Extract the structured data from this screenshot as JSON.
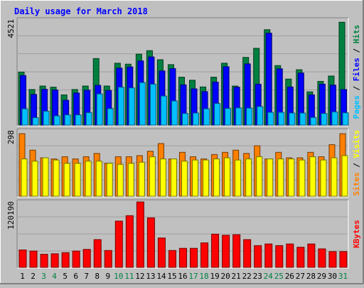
{
  "chart_data": [
    {
      "type": "bar",
      "title": "Daily usage for March 2018",
      "categories": [
        "1",
        "2",
        "3",
        "4",
        "5",
        "6",
        "7",
        "8",
        "9",
        "10",
        "11",
        "12",
        "13",
        "14",
        "15",
        "16",
        "17",
        "18",
        "19",
        "20",
        "21",
        "22",
        "23",
        "24",
        "25",
        "26",
        "27",
        "28",
        "29",
        "30",
        "31"
      ],
      "weekend_days": [
        "3",
        "4",
        "10",
        "11",
        "17",
        "18",
        "24",
        "25",
        "31"
      ],
      "ylim": [
        0,
        4521
      ],
      "y_tick_label": "4521",
      "legend": [
        "Pages",
        "Files",
        "Hits"
      ],
      "series": [
        {
          "name": "Hits",
          "values": [
            2280,
            1530,
            1680,
            1630,
            1300,
            1530,
            1680,
            2860,
            1680,
            2660,
            2620,
            3050,
            3200,
            2810,
            2600,
            2060,
            1930,
            1640,
            2060,
            2660,
            1680,
            2910,
            3300,
            4100,
            2560,
            1980,
            2380,
            1430,
            1880,
            2110,
            4420
          ]
        },
        {
          "name": "Files",
          "values": [
            2130,
            1320,
            1540,
            1510,
            1070,
            1380,
            1500,
            1710,
            1490,
            2450,
            2500,
            2760,
            2930,
            2330,
            2430,
            1730,
            1560,
            1440,
            1850,
            2510,
            1630,
            2630,
            1760,
            3950,
            2420,
            1640,
            2240,
            1300,
            1760,
            1720,
            1530
          ]
        },
        {
          "name": "Pages",
          "values": [
            700,
            320,
            600,
            400,
            440,
            440,
            540,
            1340,
            710,
            1630,
            1600,
            1830,
            1760,
            1250,
            1040,
            500,
            520,
            700,
            930,
            720,
            740,
            730,
            800,
            550,
            550,
            520,
            520,
            330,
            500,
            570,
            530
          ]
        }
      ],
      "colors": {
        "Hits": "#008040",
        "Files": "#0000ff",
        "Pages": "#00c0ff"
      }
    },
    {
      "type": "bar",
      "categories": [
        "1",
        "2",
        "3",
        "4",
        "5",
        "6",
        "7",
        "8",
        "9",
        "10",
        "11",
        "12",
        "13",
        "14",
        "15",
        "16",
        "17",
        "18",
        "19",
        "20",
        "21",
        "22",
        "23",
        "24",
        "25",
        "26",
        "27",
        "28",
        "29",
        "30",
        "31"
      ],
      "ylim": [
        0,
        298
      ],
      "y_tick_label": "298",
      "legend": [
        "Sites",
        "Visits"
      ],
      "series": [
        {
          "name": "Sites",
          "values": [
            285,
            210,
            175,
            170,
            180,
            170,
            180,
            195,
            150,
            180,
            180,
            185,
            205,
            240,
            170,
            200,
            180,
            170,
            190,
            200,
            210,
            195,
            230,
            170,
            200,
            175,
            175,
            200,
            180,
            235,
            285
          ]
        },
        {
          "name": "Visits",
          "values": [
            170,
            160,
            175,
            165,
            150,
            150,
            160,
            160,
            150,
            145,
            150,
            155,
            180,
            170,
            170,
            160,
            165,
            165,
            170,
            175,
            165,
            170,
            180,
            170,
            170,
            170,
            165,
            180,
            165,
            175,
            185
          ]
        }
      ],
      "colors": {
        "Sites": "#ff8000",
        "Visits": "#ffff00"
      }
    },
    {
      "type": "bar",
      "categories": [
        "1",
        "2",
        "3",
        "4",
        "5",
        "6",
        "7",
        "8",
        "9",
        "10",
        "11",
        "12",
        "13",
        "14",
        "15",
        "16",
        "17",
        "18",
        "19",
        "20",
        "21",
        "22",
        "23",
        "24",
        "25",
        "26",
        "27",
        "28",
        "29",
        "30",
        "31"
      ],
      "ylim": [
        0,
        120190
      ],
      "y_tick_label": "120190",
      "legend": [
        "KBytes"
      ],
      "series": [
        {
          "name": "KBytes",
          "values": [
            32000,
            30000,
            24000,
            25000,
            27000,
            30000,
            33000,
            51000,
            31000,
            85000,
            95000,
            120190,
            91000,
            54000,
            31000,
            35000,
            35000,
            45000,
            61000,
            59000,
            60000,
            51000,
            40000,
            43000,
            40000,
            43000,
            37000,
            43000,
            34000,
            29000,
            29000
          ]
        }
      ],
      "colors": {
        "KBytes": "#ff0000"
      }
    }
  ]
}
